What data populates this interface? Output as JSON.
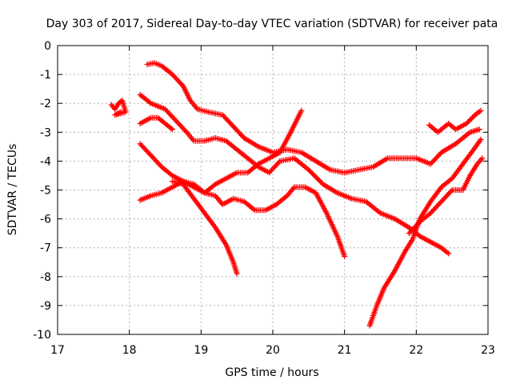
{
  "chart_data": {
    "type": "scatter",
    "title": "Day 303 of 2017, Sidereal Day-to-day VTEC variation (SDTVAR) for receiver pata",
    "xlabel": "GPS time / hours",
    "ylabel": "SDTVAR / TECUs",
    "xlim": [
      17,
      23
    ],
    "ylim": [
      -10,
      0
    ],
    "xticks": [
      17,
      18,
      19,
      20,
      21,
      22,
      23
    ],
    "yticks": [
      0,
      -1,
      -2,
      -3,
      -4,
      -5,
      -6,
      -7,
      -8,
      -9,
      -10
    ],
    "xtick_labels": [
      "17",
      "18",
      "19",
      "20",
      "21",
      "22",
      "23"
    ],
    "ytick_labels": [
      "0",
      "-1",
      "-2",
      "-3",
      "-4",
      "-5",
      "-6",
      "-7",
      "-8",
      "-9",
      "-10"
    ],
    "grid": true,
    "legend": "none",
    "marker": "+",
    "color": "#ff0000",
    "series": [
      {
        "values": [
          [
            17.75,
            -2.05
          ],
          [
            17.8,
            -2.2
          ],
          [
            17.85,
            -2.0
          ],
          [
            17.9,
            -1.9
          ],
          [
            17.95,
            -2.3
          ],
          [
            17.8,
            -2.4
          ],
          [
            17.88,
            -2.3
          ]
        ]
      },
      {
        "values": [
          [
            18.25,
            -0.65
          ],
          [
            18.35,
            -0.6
          ],
          [
            18.45,
            -0.7
          ],
          [
            18.6,
            -1.0
          ],
          [
            18.75,
            -1.4
          ],
          [
            18.85,
            -1.9
          ],
          [
            18.95,
            -2.2
          ],
          [
            19.1,
            -2.3
          ],
          [
            19.3,
            -2.4
          ],
          [
            19.45,
            -2.8
          ],
          [
            19.6,
            -3.2
          ],
          [
            19.8,
            -3.5
          ],
          [
            20.0,
            -3.7
          ],
          [
            20.2,
            -3.6
          ],
          [
            20.4,
            -3.7
          ],
          [
            20.6,
            -4.0
          ],
          [
            20.8,
            -4.3
          ],
          [
            21.0,
            -4.4
          ],
          [
            21.2,
            -4.3
          ],
          [
            21.4,
            -4.2
          ],
          [
            21.6,
            -3.9
          ],
          [
            21.8,
            -3.9
          ],
          [
            22.0,
            -3.9
          ],
          [
            22.2,
            -4.1
          ],
          [
            22.35,
            -3.7
          ],
          [
            22.55,
            -3.4
          ],
          [
            22.75,
            -3.0
          ],
          [
            22.88,
            -2.9
          ]
        ]
      },
      {
        "values": [
          [
            18.15,
            -1.7
          ],
          [
            18.3,
            -2.0
          ],
          [
            18.5,
            -2.2
          ],
          [
            18.65,
            -2.6
          ],
          [
            18.8,
            -3.0
          ],
          [
            18.9,
            -3.3
          ],
          [
            19.05,
            -3.3
          ],
          [
            19.2,
            -3.2
          ],
          [
            19.35,
            -3.3
          ],
          [
            19.5,
            -3.6
          ],
          [
            19.6,
            -3.8
          ],
          [
            19.8,
            -4.2
          ],
          [
            19.95,
            -4.4
          ],
          [
            20.1,
            -4.0
          ],
          [
            20.3,
            -3.9
          ],
          [
            20.5,
            -4.3
          ],
          [
            20.7,
            -4.8
          ],
          [
            20.9,
            -5.1
          ],
          [
            21.1,
            -5.3
          ],
          [
            21.3,
            -5.4
          ],
          [
            21.5,
            -5.8
          ],
          [
            21.7,
            -6.0
          ],
          [
            21.9,
            -6.3
          ],
          [
            22.05,
            -6.6
          ],
          [
            22.2,
            -6.8
          ],
          [
            22.35,
            -7.0
          ],
          [
            22.45,
            -7.2
          ]
        ]
      },
      {
        "values": [
          [
            18.15,
            -2.7
          ],
          [
            18.3,
            -2.5
          ],
          [
            18.4,
            -2.5
          ],
          [
            18.55,
            -2.8
          ],
          [
            18.6,
            -2.9
          ]
        ]
      },
      {
        "values": [
          [
            18.15,
            -3.4
          ],
          [
            18.3,
            -3.8
          ],
          [
            18.45,
            -4.2
          ],
          [
            18.6,
            -4.5
          ],
          [
            18.75,
            -4.7
          ],
          [
            18.9,
            -4.9
          ],
          [
            19.05,
            -5.1
          ],
          [
            19.2,
            -5.2
          ],
          [
            19.3,
            -5.5
          ],
          [
            19.45,
            -5.3
          ],
          [
            19.6,
            -5.4
          ],
          [
            19.75,
            -5.7
          ],
          [
            19.9,
            -5.7
          ],
          [
            20.05,
            -5.5
          ],
          [
            20.2,
            -5.2
          ],
          [
            20.3,
            -4.9
          ],
          [
            20.45,
            -4.9
          ],
          [
            20.6,
            -5.1
          ],
          [
            20.75,
            -5.8
          ],
          [
            20.9,
            -6.6
          ],
          [
            21.0,
            -7.3
          ]
        ]
      },
      {
        "values": [
          [
            18.15,
            -5.35
          ],
          [
            18.3,
            -5.2
          ],
          [
            18.45,
            -5.1
          ],
          [
            18.6,
            -4.9
          ],
          [
            18.75,
            -4.7
          ],
          [
            18.9,
            -4.8
          ],
          [
            19.05,
            -5.1
          ],
          [
            19.2,
            -4.8
          ],
          [
            19.35,
            -4.6
          ],
          [
            19.5,
            -4.4
          ],
          [
            19.65,
            -4.4
          ],
          [
            19.8,
            -4.1
          ],
          [
            19.95,
            -3.9
          ],
          [
            20.1,
            -3.7
          ],
          [
            20.25,
            -3.0
          ],
          [
            20.4,
            -2.25
          ]
        ]
      },
      {
        "values": [
          [
            18.6,
            -4.7
          ],
          [
            18.75,
            -4.8
          ],
          [
            18.9,
            -5.3
          ],
          [
            19.05,
            -5.8
          ],
          [
            19.2,
            -6.3
          ],
          [
            19.35,
            -6.9
          ],
          [
            19.45,
            -7.5
          ],
          [
            19.5,
            -7.9
          ]
        ]
      },
      {
        "values": [
          [
            21.35,
            -9.7
          ],
          [
            21.45,
            -9.0
          ],
          [
            21.55,
            -8.4
          ],
          [
            21.7,
            -7.8
          ],
          [
            21.85,
            -7.1
          ],
          [
            21.95,
            -6.7
          ],
          [
            22.05,
            -6.0
          ],
          [
            22.2,
            -5.4
          ],
          [
            22.35,
            -4.9
          ],
          [
            22.5,
            -4.6
          ],
          [
            22.65,
            -4.1
          ],
          [
            22.8,
            -3.6
          ],
          [
            22.9,
            -3.25
          ]
        ]
      },
      {
        "values": [
          [
            21.9,
            -6.5
          ],
          [
            22.05,
            -6.1
          ],
          [
            22.2,
            -5.8
          ],
          [
            22.35,
            -5.4
          ],
          [
            22.5,
            -5.0
          ],
          [
            22.65,
            -5.0
          ],
          [
            22.75,
            -4.5
          ],
          [
            22.85,
            -4.1
          ],
          [
            22.92,
            -3.9
          ]
        ]
      },
      {
        "values": [
          [
            22.18,
            -2.75
          ],
          [
            22.3,
            -3.0
          ],
          [
            22.45,
            -2.7
          ],
          [
            22.55,
            -2.9
          ],
          [
            22.7,
            -2.7
          ],
          [
            22.82,
            -2.4
          ],
          [
            22.9,
            -2.25
          ]
        ]
      }
    ]
  }
}
